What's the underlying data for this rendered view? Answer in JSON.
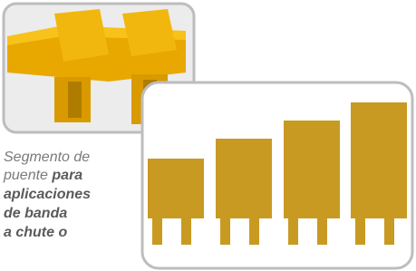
{
  "caption": {
    "regular": [
      "Segmento de",
      "puente"
    ],
    "bold": [
      "para",
      "aplicaciones",
      "de banda",
      "a chute o"
    ]
  }
}
